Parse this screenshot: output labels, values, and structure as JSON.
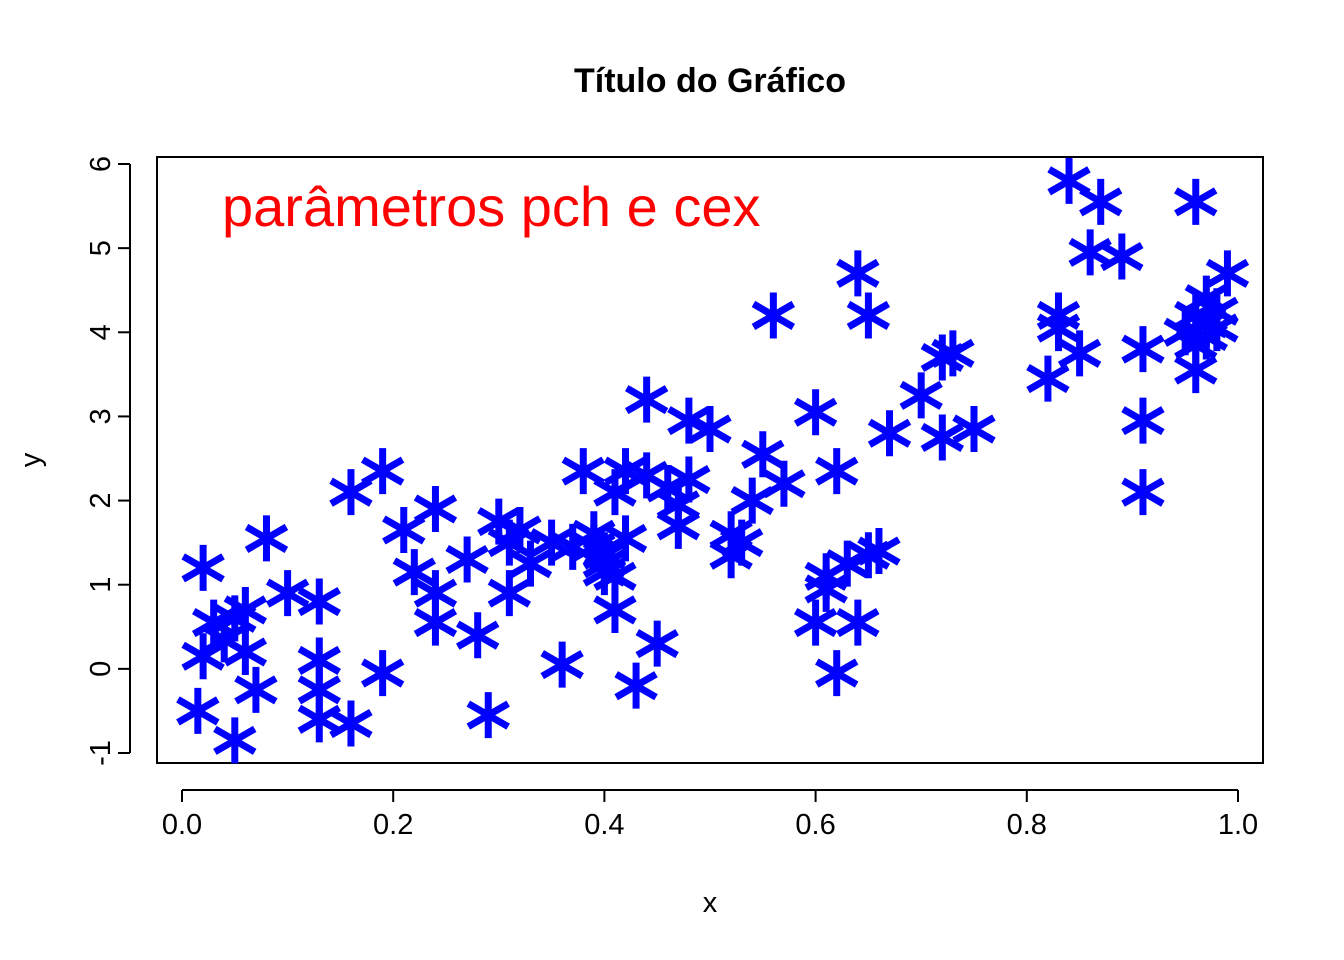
{
  "chart_data": {
    "type": "scatter",
    "title": "Título do Gráfico",
    "xlabel": "x",
    "ylabel": "y",
    "xlim": [
      0,
      1
    ],
    "ylim": [
      -1,
      6
    ],
    "xticks": [
      0.0,
      0.2,
      0.4,
      0.6,
      0.8,
      1.0
    ],
    "xtick_labels": [
      "0.0",
      "0.2",
      "0.4",
      "0.6",
      "0.8",
      "1.0"
    ],
    "yticks": [
      -1,
      0,
      1,
      2,
      3,
      4,
      5,
      6
    ],
    "ytick_labels": [
      "-1",
      "0",
      "1",
      "2",
      "3",
      "4",
      "5",
      "6"
    ],
    "grid": false,
    "marker": "asterisk",
    "marker_color": "#0000ff",
    "annotation": {
      "text": "parâmetros pch e cex",
      "color": "#ff0000",
      "x": 0.04,
      "y": 5.5
    },
    "series": [
      {
        "points": [
          [
            0.02,
            1.2
          ],
          [
            0.03,
            0.55
          ],
          [
            0.02,
            0.15
          ],
          [
            0.04,
            0.35
          ],
          [
            0.05,
            0.6
          ],
          [
            0.06,
            0.7
          ],
          [
            0.06,
            0.2
          ],
          [
            0.015,
            -0.5
          ],
          [
            0.05,
            -0.85
          ],
          [
            0.07,
            -0.25
          ],
          [
            0.08,
            1.55
          ],
          [
            0.1,
            0.9
          ],
          [
            0.13,
            0.8
          ],
          [
            0.13,
            0.1
          ],
          [
            0.13,
            -0.25
          ],
          [
            0.13,
            -0.6
          ],
          [
            0.16,
            -0.65
          ],
          [
            0.19,
            -0.05
          ],
          [
            0.16,
            2.1
          ],
          [
            0.19,
            2.35
          ],
          [
            0.21,
            1.65
          ],
          [
            0.22,
            1.15
          ],
          [
            0.24,
            1.9
          ],
          [
            0.24,
            0.9
          ],
          [
            0.24,
            0.55
          ],
          [
            0.27,
            1.3
          ],
          [
            0.28,
            0.4
          ],
          [
            0.29,
            -0.55
          ],
          [
            0.3,
            1.75
          ],
          [
            0.31,
            1.5
          ],
          [
            0.31,
            0.9
          ],
          [
            0.32,
            1.65
          ],
          [
            0.33,
            1.25
          ],
          [
            0.35,
            1.5
          ],
          [
            0.36,
            0.05
          ],
          [
            0.37,
            1.45
          ],
          [
            0.38,
            2.35
          ],
          [
            0.39,
            1.6
          ],
          [
            0.39,
            1.45
          ],
          [
            0.4,
            1.35
          ],
          [
            0.4,
            1.25
          ],
          [
            0.4,
            1.15
          ],
          [
            0.41,
            1.1
          ],
          [
            0.41,
            0.7
          ],
          [
            0.41,
            2.1
          ],
          [
            0.42,
            2.35
          ],
          [
            0.42,
            1.55
          ],
          [
            0.43,
            -0.2
          ],
          [
            0.44,
            2.3
          ],
          [
            0.44,
            3.2
          ],
          [
            0.45,
            0.3
          ],
          [
            0.46,
            2.15
          ],
          [
            0.47,
            1.95
          ],
          [
            0.47,
            1.7
          ],
          [
            0.48,
            2.25
          ],
          [
            0.48,
            2.95
          ],
          [
            0.5,
            2.85
          ],
          [
            0.52,
            1.6
          ],
          [
            0.52,
            1.35
          ],
          [
            0.53,
            1.5
          ],
          [
            0.54,
            2.0
          ],
          [
            0.55,
            2.55
          ],
          [
            0.56,
            4.2
          ],
          [
            0.57,
            2.2
          ],
          [
            0.6,
            3.05
          ],
          [
            0.6,
            0.55
          ],
          [
            0.61,
            1.1
          ],
          [
            0.61,
            0.95
          ],
          [
            0.62,
            2.35
          ],
          [
            0.62,
            -0.05
          ],
          [
            0.63,
            1.25
          ],
          [
            0.64,
            0.55
          ],
          [
            0.64,
            4.7
          ],
          [
            0.65,
            4.2
          ],
          [
            0.65,
            1.35
          ],
          [
            0.66,
            1.4
          ],
          [
            0.67,
            2.8
          ],
          [
            0.7,
            3.25
          ],
          [
            0.72,
            3.7
          ],
          [
            0.72,
            2.75
          ],
          [
            0.73,
            3.75
          ],
          [
            0.75,
            2.85
          ],
          [
            0.82,
            3.45
          ],
          [
            0.83,
            4.05
          ],
          [
            0.83,
            4.2
          ],
          [
            0.84,
            5.8
          ],
          [
            0.85,
            3.75
          ],
          [
            0.86,
            4.95
          ],
          [
            0.87,
            5.55
          ],
          [
            0.89,
            4.9
          ],
          [
            0.91,
            3.8
          ],
          [
            0.91,
            2.95
          ],
          [
            0.91,
            2.1
          ],
          [
            0.95,
            4.0
          ],
          [
            0.96,
            5.55
          ],
          [
            0.96,
            4.2
          ],
          [
            0.96,
            3.85
          ],
          [
            0.96,
            3.55
          ],
          [
            0.97,
            4.4
          ],
          [
            0.97,
            4.1
          ],
          [
            0.97,
            3.95
          ],
          [
            0.98,
            4.25
          ],
          [
            0.98,
            4.05
          ],
          [
            0.99,
            4.7
          ]
        ]
      }
    ]
  }
}
